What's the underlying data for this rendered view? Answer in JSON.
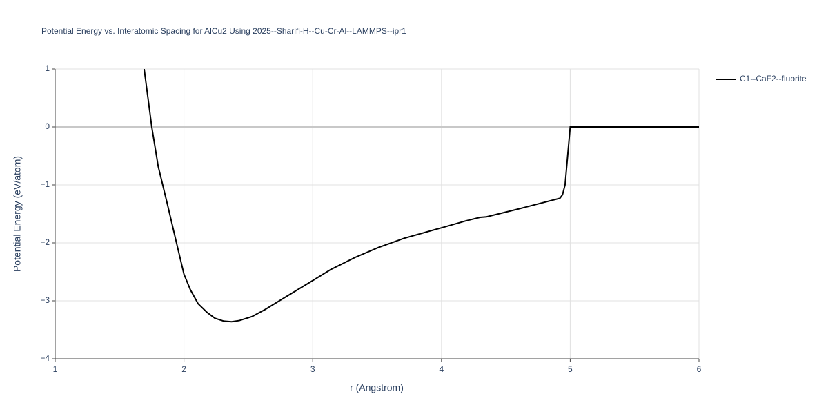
{
  "chart_data": {
    "type": "line",
    "title": "Potential Energy vs. Interatomic Spacing for AlCu2 Using 2025--Sharifi-H--Cu-Cr-Al--LAMMPS--ipr1",
    "x_label": "r (Angstrom)",
    "y_label": "Potential Energy (eV/atom)",
    "xlim": [
      1,
      6
    ],
    "xticks": [
      1,
      2,
      3,
      4,
      5,
      6
    ],
    "ylim": [
      -4,
      1
    ],
    "yticks": [
      {
        "value": -4,
        "label": "−4"
      },
      {
        "value": -3,
        "label": "−3"
      },
      {
        "value": -2,
        "label": "−2"
      },
      {
        "value": -1,
        "label": "−1"
      },
      0,
      1
    ],
    "grid": true,
    "legend": "right",
    "series": [
      {
        "name": "C1--CaF2--fluorite",
        "color": "#000000",
        "x": [
          1.691,
          1.75,
          1.8,
          1.87,
          1.94,
          2.0,
          2.05,
          2.11,
          2.18,
          2.24,
          2.31,
          2.37,
          2.43,
          2.53,
          2.63,
          2.77,
          3.0,
          3.14,
          3.33,
          3.51,
          3.71,
          4.0,
          4.19,
          4.3,
          4.35,
          4.59,
          4.92,
          4.94,
          4.96,
          4.98,
          5.0,
          6.0
        ],
        "values": [
          1,
          0,
          -0.68,
          -1.32,
          -1.98,
          -2.54,
          -2.81,
          -3.05,
          -3.2,
          -3.3,
          -3.35,
          -3.36,
          -3.34,
          -3.27,
          -3.15,
          -2.96,
          -2.65,
          -2.46,
          -2.25,
          -2.08,
          -1.92,
          -1.74,
          -1.62,
          -1.56,
          -1.55,
          -1.42,
          -1.23,
          -1.17,
          -1.0,
          -0.5,
          0,
          0
        ]
      }
    ]
  }
}
